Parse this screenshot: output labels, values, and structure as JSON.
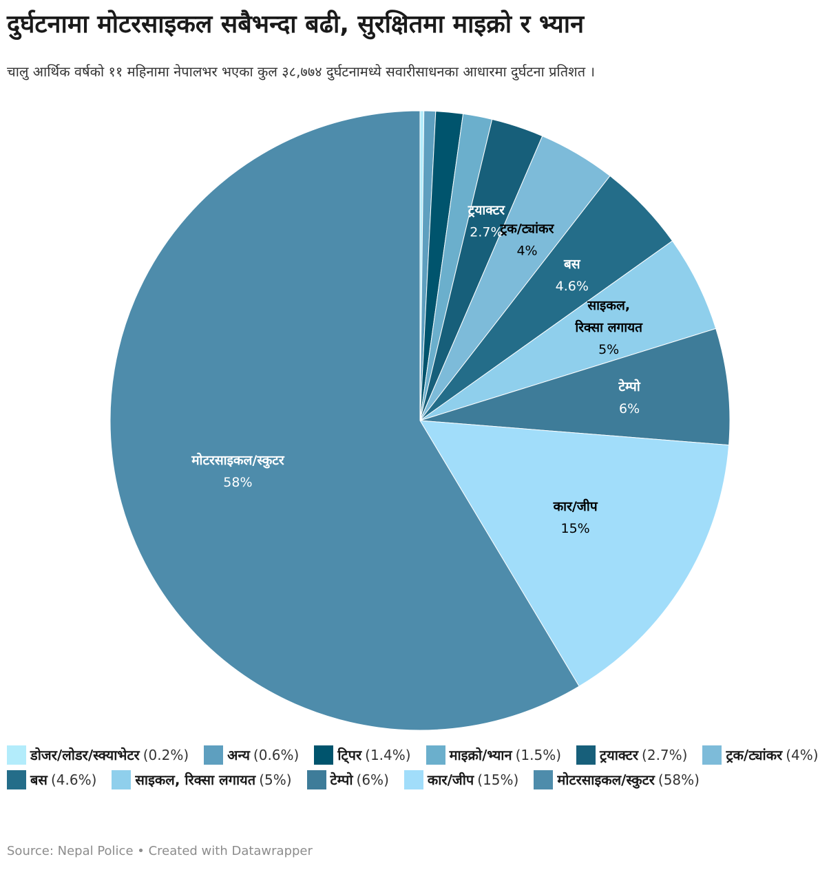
{
  "title": "दुर्घटनामा मोटरसाइकल सबैभन्दा बढी, सुरक्षितमा माइक्रो र भ्यान",
  "subtitle": "चालु आर्थिक वर्षको ११ महिनामा नेपालभर भएका कुल ३८,७७४ दुर्घटनामध्ये सवारीसाधनका आधारमा दुर्घटना प्रतिशत ।",
  "footer": "Source: Nepal Police • Created with Datawrapper",
  "chart_data": {
    "type": "pie",
    "title": "दुर्घटनामा मोटरसाइकल सबैभन्दा बढी, सुरक्षितमा माइक्रो र भ्यान",
    "legend_position": "bottom",
    "slices": [
      {
        "name": "डोजर/लोडर/स्क्याभेटर",
        "value": 0.2,
        "display": "0.2%",
        "color": "#b3ecfb",
        "label_lines": [],
        "label_color": "#000000",
        "show_label": false
      },
      {
        "name": "अन्य",
        "value": 0.6,
        "display": "0.6%",
        "color": "#5e9fbf",
        "label_lines": [],
        "label_color": "#000000",
        "show_label": false
      },
      {
        "name": "टि्पर",
        "value": 1.4,
        "display": "1.4%",
        "color": "#00546d",
        "label_lines": [],
        "label_color": "#000000",
        "show_label": false
      },
      {
        "name": "माइक्रो/भ्यान",
        "value": 1.5,
        "display": "1.5%",
        "color": "#6bafcc",
        "label_lines": [],
        "label_color": "#000000",
        "show_label": false
      },
      {
        "name": "ट्रयाक्टर",
        "value": 2.7,
        "display": "2.7%",
        "color": "#175f7a",
        "label_lines": [
          "ट्रयाक्टर"
        ],
        "label_color": "#ffffff",
        "show_label": true
      },
      {
        "name": "ट्रक/ट्यांकर",
        "value": 4,
        "display": "4%",
        "color": "#7dbbd9",
        "label_lines": [
          "ट्रक/ट्यांकर"
        ],
        "label_color": "#000000",
        "show_label": true
      },
      {
        "name": "बस",
        "value": 4.6,
        "display": "4.6%",
        "color": "#246d89",
        "label_lines": [
          "बस"
        ],
        "label_color": "#ffffff",
        "show_label": true
      },
      {
        "name": "साइकल, रिक्सा लगायत",
        "value": 5,
        "display": "5%",
        "color": "#8fcfec",
        "label_lines": [
          "साइकल,",
          "रिक्सा लगायत"
        ],
        "label_color": "#000000",
        "show_label": true
      },
      {
        "name": "टेम्पो",
        "value": 6,
        "display": "6%",
        "color": "#3e7c99",
        "label_lines": [
          "टेम्पो"
        ],
        "label_color": "#ffffff",
        "show_label": true
      },
      {
        "name": "कार/जीप",
        "value": 15,
        "display": "15%",
        "color": "#a1ddfa",
        "label_lines": [
          "कार/जीप"
        ],
        "label_color": "#000000",
        "show_label": true
      },
      {
        "name": "मोटरसाइकल/स्कुटर",
        "value": 58,
        "display": "58%",
        "color": "#4e8cab",
        "label_lines": [
          "मोटरसाइकल/स्कुटर"
        ],
        "label_color": "#ffffff",
        "show_label": true
      }
    ]
  }
}
